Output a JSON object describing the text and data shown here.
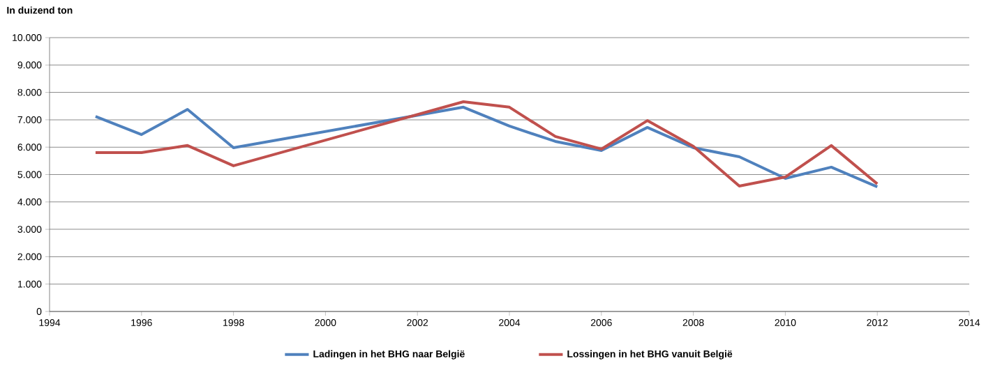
{
  "chart_data": {
    "type": "line",
    "ylabel": "In duizend ton",
    "xlim": [
      1994,
      2014
    ],
    "xticks": [
      1994,
      1996,
      1998,
      2000,
      2002,
      2004,
      2006,
      2008,
      2010,
      2012,
      2014
    ],
    "ylim": [
      0,
      10000
    ],
    "yticks": [
      0,
      {
        "value": 1000,
        "label": "1.000"
      },
      {
        "value": 2000,
        "label": "2.000"
      },
      {
        "value": 3000,
        "label": "3.000"
      },
      {
        "value": 4000,
        "label": "4.000"
      },
      {
        "value": 5000,
        "label": "5.000"
      },
      {
        "value": 6000,
        "label": "6.000"
      },
      {
        "value": 7000,
        "label": "7.000"
      },
      {
        "value": 8000,
        "label": "8.000"
      },
      {
        "value": 9000,
        "label": "9.000"
      },
      {
        "value": 10000,
        "label": "10.000"
      }
    ],
    "grid": "y",
    "legend": "bottom",
    "marker": "none",
    "line_style": "solid",
    "x": [
      1995,
      1996,
      1997,
      1998,
      2003,
      2004,
      2005,
      2006,
      2007,
      2008,
      2009,
      2010,
      2011,
      2012
    ],
    "series": [
      {
        "name": "Ladingen in het BHG naar België",
        "color": "#4f81bd",
        "values": [
          7120,
          6460,
          7380,
          5980,
          7460,
          6770,
          6210,
          5880,
          6720,
          5980,
          5650,
          4860,
          5270,
          4550
        ]
      },
      {
        "name": "Lossingen in het BHG vanuit België",
        "color": "#c0504d",
        "values": [
          5800,
          5800,
          6060,
          5320,
          7660,
          7460,
          6390,
          5930,
          6970,
          6030,
          4580,
          4910,
          6060,
          4660
        ]
      }
    ]
  }
}
